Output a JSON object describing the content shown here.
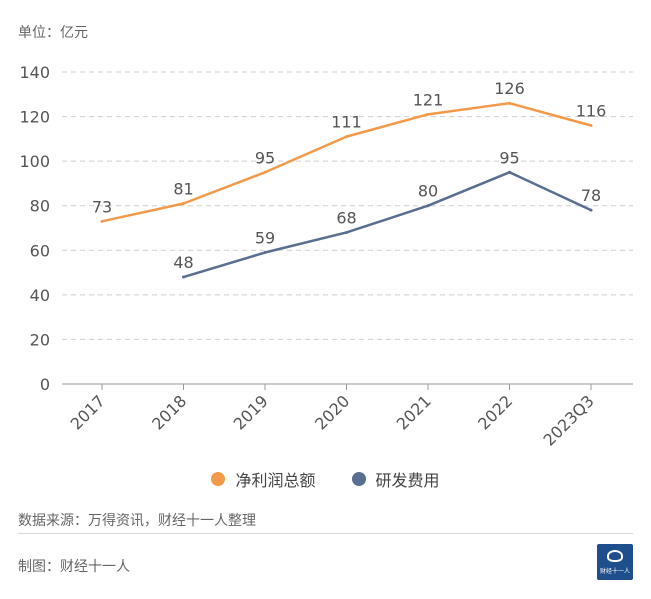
{
  "header": {
    "unit": "单位：亿元"
  },
  "chart_data": {
    "type": "line",
    "categories": [
      "2017",
      "2018",
      "2019",
      "2020",
      "2021",
      "2022",
      "2023Q3"
    ],
    "series": [
      {
        "name": "净利润总额",
        "color": "#f39a4a",
        "values": [
          73,
          81,
          95,
          111,
          121,
          126,
          116
        ]
      },
      {
        "name": "研发费用",
        "color": "#5a6e8f",
        "values": [
          null,
          48,
          59,
          68,
          80,
          95,
          78
        ]
      }
    ],
    "ylim": [
      0,
      140
    ],
    "yticks": [
      0,
      20,
      40,
      60,
      80,
      100,
      120,
      140
    ],
    "grid": true,
    "legend": "bottom-center"
  },
  "footer": {
    "source": "数据来源：万得资讯，财经十一人整理",
    "maker": "制图：财经十一人",
    "logo_text": "财经十一人"
  }
}
